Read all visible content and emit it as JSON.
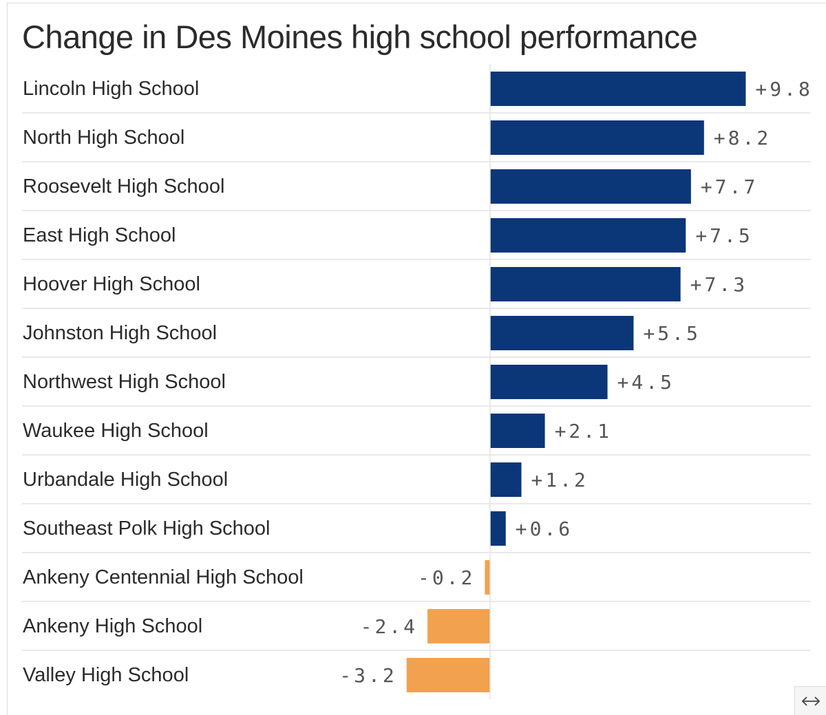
{
  "chart_data": {
    "type": "bar",
    "orientation": "horizontal",
    "title": "Change in Des Moines high school performance",
    "categories": [
      "Lincoln High School",
      "North High School",
      "Roosevelt High School",
      "East High School",
      "Hoover High School",
      "Johnston High School",
      "Northwest High School",
      "Waukee High School",
      "Urbandale High School",
      "Southeast Polk High School",
      "Ankeny Centennial High School",
      "Ankeny High School",
      "Valley High School"
    ],
    "values": [
      9.8,
      8.2,
      7.7,
      7.5,
      7.3,
      5.5,
      4.5,
      2.1,
      1.2,
      0.6,
      -0.2,
      -2.4,
      -3.2
    ],
    "value_labels": [
      "+9.8",
      "+8.2",
      "+7.7",
      "+7.5",
      "+7.3",
      "+5.5",
      "+4.5",
      "+2.1",
      "+1.2",
      "+0.6",
      "-0.2",
      "-2.4",
      "-3.2"
    ],
    "xlim": [
      -3.2,
      9.8
    ],
    "grid": false,
    "colors": {
      "positive": "#0b3678",
      "negative": "#f2a24e"
    }
  },
  "controls": {
    "expand_icon": "horizontal-expand-icon"
  }
}
